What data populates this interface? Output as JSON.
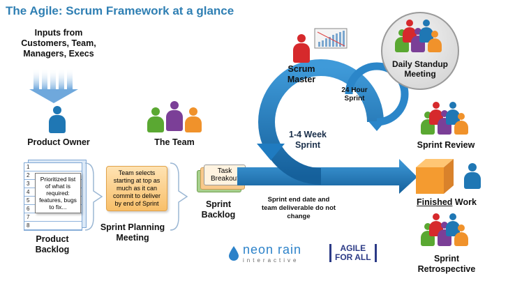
{
  "title": "The Agile: Scrum Framework at a glance",
  "inputs_label": "Inputs from Customers, Team, Managers, Execs",
  "product_owner_label": "Product Owner",
  "the_team_label": "The Team",
  "scrum_master_label": "Scrum Master",
  "daily_standup_label": "Daily Standup Meeting",
  "hour_sprint_label": "24 Hour Sprint",
  "week_sprint_label": "1-4 Week Sprint",
  "sprint_review_label": "Sprint Review",
  "finished_word": "Finished",
  "work_word": " Work",
  "product_backlog_label": "Product Backlog",
  "backlog_note": "Prioritized list of what is required: features, bugs to fix...",
  "backlog_rows": [
    "1",
    "2",
    "3",
    "4",
    "5",
    "6",
    "7",
    "8"
  ],
  "planning_box_text": "Team selects starting at top as much as it can commit to deliver by end of Sprint",
  "planning_label": "Sprint Planning Meeting",
  "task_breakout_label": "Task Breakout",
  "sprint_backlog_label": "Sprint Backlog",
  "sprint_end_note": "Sprint end date and team deliverable do not change",
  "sprint_retro_label": "Sprint Retrospective",
  "logos": {
    "neon": "neon rain",
    "interactive": "interactive",
    "agile_line1": "AGILE",
    "agile_line2": "FOR ALL"
  },
  "colors": {
    "arrow_blue": "#1f7bc0",
    "title_blue": "#2f7fb3",
    "person_red": "#d6292c",
    "person_green": "#5aa832",
    "person_purple": "#7b3f97",
    "person_orange": "#f0922b",
    "person_blue": "#1f77b4"
  },
  "icons": [
    "person-icon",
    "burndown-chart-icon",
    "cube-icon",
    "sprint-cycle-arrow",
    "input-arrows"
  ]
}
